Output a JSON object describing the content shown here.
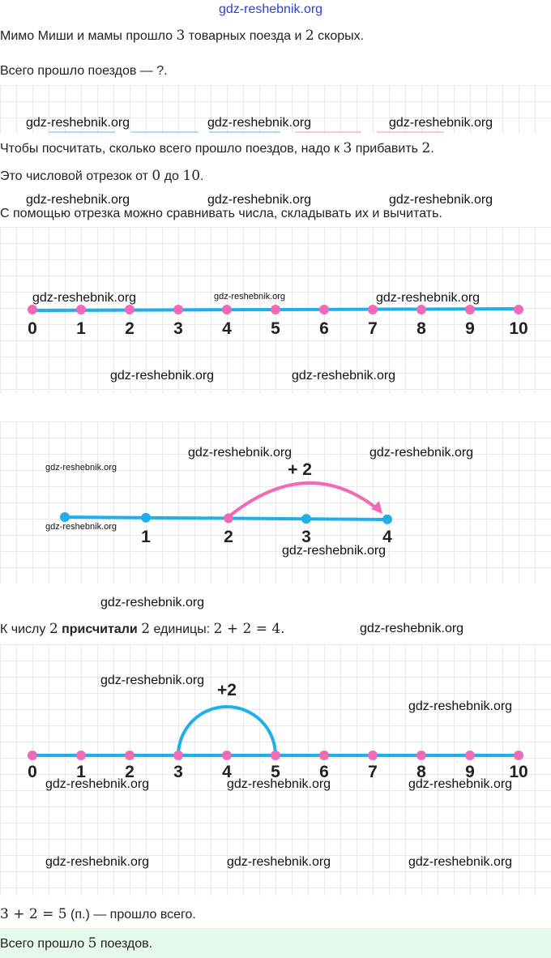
{
  "watermark": "gdz-reshebnik.org",
  "text": {
    "p1a": "Мимо Миши и мамы прошло ",
    "p1n1": "3",
    "p1b": " товарных поезда и ",
    "p1n2": "2",
    "p1c": " скорых.",
    "p2": "Всего прошло поездов — ?.",
    "p3a": "Чтобы посчитать, сколько всего прошло поездов, надо к ",
    "p3n1": "3",
    "p3b": " прибавить ",
    "p3n2": "2",
    "p3c": ".",
    "p4a": "Это числовой отрезок от ",
    "p4n1": "0",
    "p4b": " до ",
    "p4n2": "10",
    "p4c": ".",
    "p5": "С помощью отрезка можно сравнивать числа, складывать их и вычитать.",
    "p6a": "К числу ",
    "p6n1": "2",
    "p6b": "присчитали",
    "p6n2": "2",
    "p6c": " единицы: ",
    "p6eq": "2 + 2 = 4.",
    "p7eq": "3 + 2 = 5",
    "p7b": " (п.) — прошло всего.",
    "answer_a": "Всего прошло ",
    "answer_n": "5",
    "answer_b": " поездов."
  },
  "line1": {
    "labels": [
      "0",
      "1",
      "2",
      "3",
      "4",
      "5",
      "6",
      "7",
      "8",
      "9",
      "10"
    ]
  },
  "line2": {
    "labels": [
      "1",
      "2",
      "3",
      "4"
    ],
    "jump": "+ 2"
  },
  "line3": {
    "labels": [
      "0",
      "1",
      "2",
      "3",
      "4",
      "5",
      "6",
      "7",
      "8",
      "9",
      "10"
    ],
    "jump": "+2"
  },
  "colors": {
    "line": "#1fb0ea",
    "dot_pink": "#f06ab8",
    "arc_pink": "#f06ab8",
    "answer_bg": "#e5f9ec",
    "grid": "#e9e9e9"
  }
}
